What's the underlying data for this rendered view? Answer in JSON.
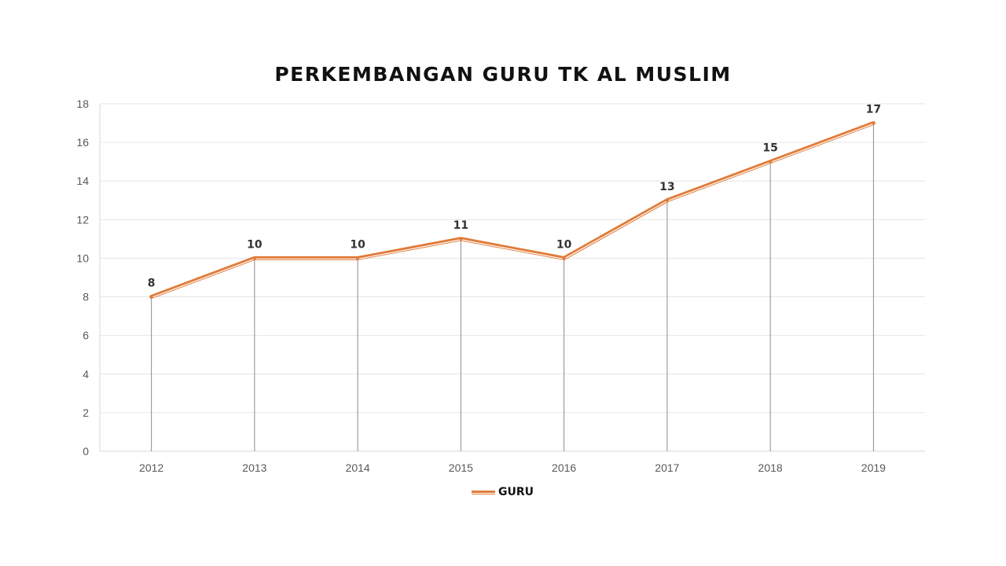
{
  "chart_data": {
    "type": "line",
    "title": "PERKEMBANGAN GURU TK AL MUSLIM",
    "categories": [
      "2012",
      "2013",
      "2014",
      "2015",
      "2016",
      "2017",
      "2018",
      "2019"
    ],
    "series": [
      {
        "name": "GURU",
        "values": [
          8,
          10,
          10,
          11,
          10,
          13,
          15,
          17
        ],
        "color": "#e07b39"
      }
    ],
    "ylim": [
      0,
      18
    ],
    "yticks": [
      0,
      2,
      4,
      6,
      8,
      10,
      12,
      14,
      16,
      18
    ],
    "data_labels": true,
    "drop_lines": true,
    "grid": true,
    "legend_position": "bottom"
  }
}
